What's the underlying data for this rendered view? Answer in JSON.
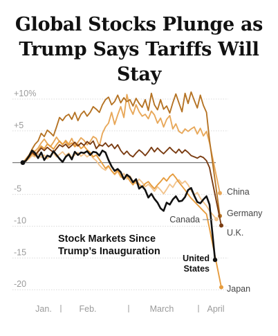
{
  "headline": {
    "line1": "Global Stocks Plunge as",
    "line2": "Trump Says Tariffs Will Stay"
  },
  "chart_data": {
    "type": "line",
    "ylim": [
      -21.5,
      12.5
    ],
    "y_ticks": [
      {
        "value": 10,
        "label": "+10%"
      },
      {
        "value": 5,
        "label": "+5"
      },
      {
        "value": -5,
        "label": "-5"
      },
      {
        "value": -10,
        "label": "-10"
      },
      {
        "value": -15,
        "label": "-15"
      },
      {
        "value": -20,
        "label": "-20"
      }
    ],
    "x_labels": [
      "Jan.",
      "Feb.",
      "March",
      "April"
    ],
    "annotation": {
      "line1": "Stock Markets Since",
      "line2": "Trump’s Inauguration"
    },
    "grid": true,
    "colors": {
      "China": "#e8a85a",
      "Germany": "#b57324",
      "U.K.": "#7a3c12",
      "Canada": "#f2c48d",
      "Japan": "#e69c3e",
      "United States": "#111111"
    },
    "series": [
      {
        "name": "United States",
        "label_lines": [
          "United",
          "States"
        ],
        "values": [
          0,
          0.3,
          1.0,
          1.9,
          1.5,
          0.7,
          1.6,
          0.4,
          1.1,
          0.9,
          1.8,
          1.2,
          0.6,
          0.1,
          0.9,
          1.3,
          0.5,
          1.7,
          1.2,
          1.6,
          1.5,
          1.8,
          1.2,
          1.7,
          1.6,
          1.1,
          1.9,
          1.6,
          0.4,
          -0.6,
          -1.3,
          -1.0,
          -1.5,
          -2.6,
          -1.9,
          -2.3,
          -3.1,
          -2.6,
          -4.1,
          -3.7,
          -4.3,
          -5.5,
          -4.9,
          -5.7,
          -6.3,
          -7.2,
          -7.6,
          -6.3,
          -6.6,
          -5.8,
          -5.3,
          -6.1,
          -6.0,
          -5.4,
          -4.3,
          -4.0,
          -5.2,
          -6.2,
          -6.4,
          -5.8,
          -5.3,
          -6.6,
          -15.3
        ]
      },
      {
        "name": "China",
        "label_lines": [
          "China"
        ],
        "values": [
          0,
          0.6,
          1.2,
          2.0,
          1.8,
          2.3,
          3.1,
          3.7,
          3.0,
          2.5,
          3.2,
          4.0,
          3.3,
          2.8,
          3.5,
          2.9,
          3.8,
          2.7,
          3.2,
          3.9,
          3.5,
          2.8,
          3.3,
          4.1,
          3.8,
          2.6,
          4.6,
          5.6,
          6.2,
          7.9,
          6.0,
          7.5,
          8.8,
          7.1,
          10.7,
          8.6,
          7.6,
          9.1,
          8.0,
          7.3,
          7.6,
          6.9,
          8.1,
          7.5,
          6.2,
          7.0,
          5.6,
          6.8,
          7.4,
          5.3,
          6.1,
          4.9,
          4.6,
          5.3,
          4.9,
          5.3,
          5.6,
          4.5,
          5.4,
          4.2,
          4.9,
          3.1,
          -4.8
        ]
      },
      {
        "name": "Germany",
        "label_lines": [
          "Germany"
        ],
        "values": [
          0,
          0.4,
          1.1,
          2.1,
          2.9,
          3.4,
          4.6,
          4.1,
          5.1,
          4.7,
          4.2,
          5.6,
          7.1,
          6.6,
          7.3,
          7.6,
          6.8,
          7.9,
          6.6,
          7.6,
          8.1,
          7.3,
          7.9,
          8.8,
          8.4,
          7.9,
          9.1,
          9.9,
          10.3,
          9.1,
          9.6,
          10.6,
          9.4,
          10.2,
          9.6,
          9.9,
          8.9,
          10.1,
          9.3,
          8.7,
          9.9,
          8.2,
          10.9,
          9.1,
          8.3,
          9.9,
          8.4,
          8.9,
          7.8,
          9.4,
          10.8,
          9.4,
          8.0,
          10.9,
          9.3,
          11.1,
          9.8,
          8.6,
          10.6,
          9.0,
          7.9,
          3.5,
          -8.4
        ]
      },
      {
        "name": "U.K.",
        "label_lines": [
          "U.K."
        ],
        "values": [
          0,
          0.3,
          0.9,
          1.6,
          1.2,
          1.7,
          2.3,
          1.9,
          2.4,
          2.0,
          1.6,
          2.2,
          2.8,
          2.5,
          2.9,
          2.3,
          2.7,
          3.2,
          2.6,
          3.1,
          2.7,
          3.3,
          2.9,
          3.4,
          2.2,
          2.8,
          2.6,
          3.1,
          2.5,
          2.9,
          2.2,
          2.8,
          1.9,
          1.3,
          1.8,
          1.2,
          0.9,
          1.5,
          2.0,
          1.6,
          1.1,
          1.7,
          2.4,
          1.7,
          2.3,
          1.8,
          1.4,
          1.9,
          2.4,
          1.9,
          1.5,
          2.1,
          1.5,
          2.0,
          1.6,
          1.1,
          0.9,
          0.7,
          1.0,
          0.8,
          0.3,
          -0.8,
          -9.9
        ]
      },
      {
        "name": "Canada",
        "label_lines": [
          "Canada"
        ],
        "values": [
          0,
          0.2,
          0.6,
          1.1,
          0.9,
          1.4,
          0.8,
          1.2,
          0.6,
          1.1,
          1.5,
          0.9,
          1.3,
          1.7,
          1.1,
          1.5,
          0.8,
          1.2,
          1.6,
          1.0,
          1.4,
          0.9,
          1.3,
          0.7,
          0.3,
          -0.4,
          -0.9,
          -1.2,
          -0.6,
          -1.3,
          -1.9,
          -1.4,
          -2.3,
          -1.7,
          -2.6,
          -2.1,
          -2.9,
          -3.3,
          -2.6,
          -3.1,
          -3.8,
          -3.4,
          -3.9,
          -4.5,
          -3.8,
          -4.3,
          -4.9,
          -4.2,
          -3.4,
          -3.9,
          -3.1,
          -2.7,
          -3.3,
          -2.9,
          -3.5,
          -4.4,
          -5.1,
          -4.7,
          -5.6,
          -6.2,
          -6.8,
          -7.6,
          -8.9
        ]
      },
      {
        "name": "Japan",
        "label_lines": [
          "Japan"
        ],
        "values": [
          0,
          0.3,
          0.8,
          1.4,
          1.1,
          1.9,
          2.6,
          2.2,
          2.9,
          2.6,
          2.1,
          2.8,
          3.4,
          2.9,
          3.3,
          2.7,
          3.1,
          2.5,
          2.9,
          2.2,
          2.6,
          2.0,
          1.6,
          0.9,
          1.2,
          0.5,
          -0.2,
          -0.9,
          -0.5,
          -1.3,
          -1.8,
          -1.2,
          -2.1,
          -2.6,
          -2.1,
          -2.9,
          -3.5,
          -2.8,
          -3.4,
          -3.9,
          -3.3,
          -3.0,
          -3.6,
          -4.1,
          -3.5,
          -3.0,
          -2.4,
          -2.9,
          -2.2,
          -1.8,
          -2.4,
          -3.1,
          -3.7,
          -4.3,
          -5.0,
          -5.6,
          -6.1,
          -6.6,
          -7.1,
          -7.6,
          -8.1,
          -10.4,
          -19.6
        ]
      }
    ]
  }
}
